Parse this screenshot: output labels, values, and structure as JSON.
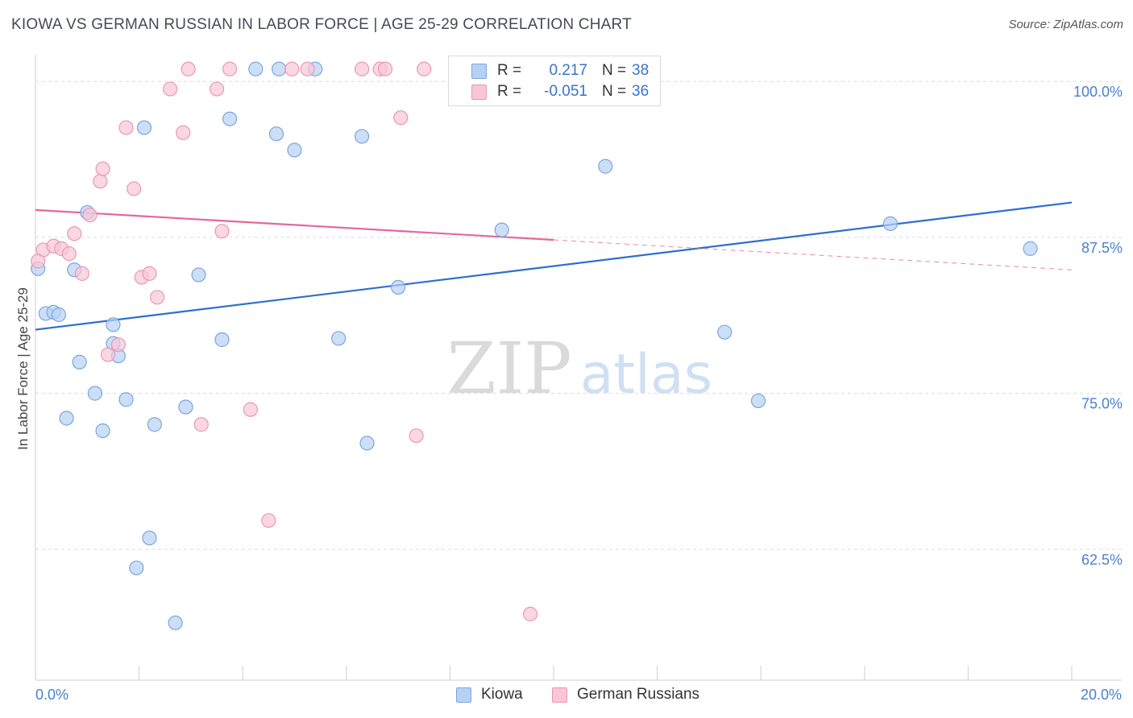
{
  "header": {
    "title": "KIOWA VS GERMAN RUSSIAN IN LABOR FORCE | AGE 25-29 CORRELATION CHART",
    "source": "Source: ZipAtlas.com"
  },
  "watermark": {
    "zip": "ZIP",
    "atlas": "atlas"
  },
  "legend": {
    "rows": [
      {
        "r_label": "R =",
        "r_value": "0.217",
        "n_label": "N =",
        "n_value": "38"
      },
      {
        "r_label": "R =",
        "r_value": "-0.051",
        "n_label": "N =",
        "n_value": "36"
      }
    ]
  },
  "bottom_legend": [
    "Kiowa",
    "German Russians"
  ],
  "colors": {
    "kiowa_fill": "#b7d1f3",
    "kiowa_stroke": "#7ba6e0",
    "kiowa_line": "#2d6fcf",
    "german_fill": "#f8c6d5",
    "german_stroke": "#eb97b3",
    "german_line": "#e5679a",
    "tick_text": "#4a7fd0",
    "grid": "#dcdcdc"
  },
  "chart_data": {
    "type": "scatter",
    "title": "KIOWA VS GERMAN RUSSIAN IN LABOR FORCE | AGE 25-29 CORRELATION CHART",
    "xlabel": "",
    "ylabel": "In Labor Force | Age 25-29",
    "xlim": [
      0,
      20
    ],
    "ylim": [
      52,
      101.5
    ],
    "x_tick_labels": [
      "0.0%",
      "20.0%"
    ],
    "y_ticks": [
      62.5,
      75.0,
      87.5,
      100.0
    ],
    "y_tick_labels": [
      "62.5%",
      "75.0%",
      "87.5%",
      "100.0%"
    ],
    "grid": true,
    "series": [
      {
        "name": "Kiowa",
        "points": [
          [
            0.05,
            85.0
          ],
          [
            0.2,
            81.4
          ],
          [
            0.35,
            81.5
          ],
          [
            0.45,
            81.3
          ],
          [
            0.6,
            73.0
          ],
          [
            0.75,
            84.9
          ],
          [
            0.85,
            77.5
          ],
          [
            1.0,
            89.5
          ],
          [
            1.15,
            75.0
          ],
          [
            1.3,
            72.0
          ],
          [
            1.5,
            79.0
          ],
          [
            1.5,
            80.5
          ],
          [
            1.6,
            78.0
          ],
          [
            1.75,
            74.5
          ],
          [
            1.95,
            61.0
          ],
          [
            2.1,
            96.3
          ],
          [
            2.2,
            63.4
          ],
          [
            2.3,
            72.5
          ],
          [
            2.7,
            56.6
          ],
          [
            2.9,
            73.9
          ],
          [
            3.15,
            84.5
          ],
          [
            3.6,
            79.3
          ],
          [
            3.75,
            97.0
          ],
          [
            4.25,
            101.0
          ],
          [
            4.65,
            95.8
          ],
          [
            4.7,
            101.0
          ],
          [
            5.0,
            94.5
          ],
          [
            5.4,
            101.0
          ],
          [
            5.85,
            79.4
          ],
          [
            6.3,
            95.6
          ],
          [
            6.4,
            71.0
          ],
          [
            7.0,
            83.5
          ],
          [
            9.0,
            88.1
          ],
          [
            11.0,
            93.2
          ],
          [
            13.3,
            79.9
          ],
          [
            13.95,
            74.4
          ],
          [
            16.5,
            88.6
          ],
          [
            19.2,
            86.6
          ]
        ]
      },
      {
        "name": "German Russians",
        "points": [
          [
            0.15,
            86.5
          ],
          [
            0.35,
            86.8
          ],
          [
            0.5,
            86.6
          ],
          [
            0.65,
            86.2
          ],
          [
            0.75,
            87.8
          ],
          [
            0.9,
            84.6
          ],
          [
            1.05,
            89.3
          ],
          [
            1.25,
            92.0
          ],
          [
            1.3,
            93.0
          ],
          [
            1.4,
            78.1
          ],
          [
            1.6,
            78.9
          ],
          [
            1.75,
            96.3
          ],
          [
            1.9,
            91.4
          ],
          [
            2.05,
            84.3
          ],
          [
            2.2,
            84.6
          ],
          [
            2.35,
            82.7
          ],
          [
            2.6,
            99.4
          ],
          [
            2.85,
            95.9
          ],
          [
            2.95,
            101.0
          ],
          [
            3.2,
            72.5
          ],
          [
            3.5,
            99.4
          ],
          [
            3.6,
            88.0
          ],
          [
            3.75,
            101.0
          ],
          [
            4.95,
            101.0
          ],
          [
            5.25,
            101.0
          ],
          [
            6.3,
            101.0
          ],
          [
            6.65,
            101.0
          ],
          [
            6.75,
            101.0
          ],
          [
            7.05,
            97.1
          ],
          [
            7.5,
            101.0
          ],
          [
            9.6,
            101.0
          ],
          [
            4.15,
            73.7
          ],
          [
            4.5,
            64.8
          ],
          [
            7.35,
            71.6
          ],
          [
            9.55,
            57.3
          ],
          [
            0.05,
            85.6
          ]
        ]
      }
    ],
    "trend_lines": [
      {
        "series": "Kiowa",
        "x": [
          0,
          20
        ],
        "y": [
          80.1,
          90.3
        ],
        "style": "solid"
      },
      {
        "series": "German Russians",
        "x": [
          0,
          10
        ],
        "y": [
          89.7,
          87.3
        ],
        "style": "solid"
      },
      {
        "series": "German Russians",
        "x": [
          10,
          20
        ],
        "y": [
          87.3,
          84.9
        ],
        "style": "dashed"
      }
    ]
  }
}
